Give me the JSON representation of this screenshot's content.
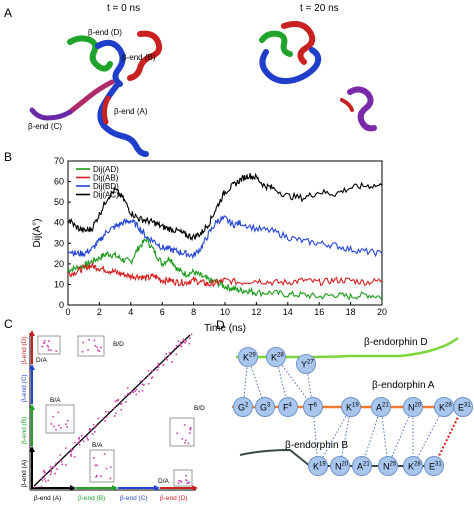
{
  "panels": {
    "a": {
      "letter": "A",
      "time_left": "t = 0 ns",
      "time_right": "t = 20 ns",
      "end_labels": [
        "β-end (D)",
        "β-end (B)",
        "β-end (C)",
        "β-end (A)"
      ]
    },
    "b": {
      "letter": "B"
    },
    "c": {
      "letter": "C",
      "axis_labels": [
        "β-end (A)",
        "β-end (B)",
        "β-end (C)",
        "β-end (D)"
      ],
      "block_labels": [
        "D/A",
        "B/D",
        "B/A",
        "B/A",
        "B/D",
        "D/A"
      ]
    },
    "d": {
      "letter": "D",
      "chain_d": {
        "title": "β-endorphin D",
        "residues": [
          {
            "aa": "K",
            "num": "29"
          },
          {
            "aa": "K",
            "num": "28"
          },
          {
            "aa": "Y",
            "num": "27"
          }
        ]
      },
      "chain_a": {
        "title": "β-endorphin A",
        "residues": [
          {
            "aa": "G",
            "num": "2"
          },
          {
            "aa": "G",
            "num": "3"
          },
          {
            "aa": "F",
            "num": "4"
          },
          {
            "aa": "T",
            "num": "6"
          },
          {
            "aa": "K",
            "num": "19"
          },
          {
            "aa": "A",
            "num": "21"
          },
          {
            "aa": "N",
            "num": "20"
          },
          {
            "aa": "K",
            "num": "28"
          },
          {
            "aa": "E",
            "num": "31"
          }
        ]
      },
      "chain_b": {
        "title": "β-endorphin B",
        "residues": [
          {
            "aa": "K",
            "num": "19"
          },
          {
            "aa": "N",
            "num": "20"
          },
          {
            "aa": "A",
            "num": "21"
          },
          {
            "aa": "N",
            "num": "25"
          },
          {
            "aa": "K",
            "num": "28"
          },
          {
            "aa": "E",
            "num": "31"
          }
        ]
      }
    }
  },
  "colors": {
    "AD": "#1a9a1a",
    "AB": "#d42020",
    "BD": "#2546d4",
    "AC": "#000000",
    "residue_fill": "#a9c6ee",
    "residue_stroke": "#6f93c9",
    "chain_d": "#7cd63a",
    "chain_a": "#f07a30",
    "chain_b": "#3a4a4a",
    "contact_blue": "#4a6fc0",
    "contact_red": "#d41818",
    "contact_dot": "#cc44aa"
  },
  "chart_data": {
    "type": "line",
    "xlabel": "Time (ns)",
    "ylabel": "Dij(A°)",
    "xlim": [
      0,
      20
    ],
    "ylim": [
      0,
      70
    ],
    "xticks": [
      0,
      2,
      4,
      6,
      8,
      10,
      12,
      14,
      16,
      18,
      20
    ],
    "yticks": [
      0,
      10,
      20,
      30,
      40,
      50,
      60,
      70
    ],
    "grid": false,
    "legend_position": "top-left",
    "series": [
      {
        "name": "Dij(AD)",
        "color": "#1a9a1a",
        "x": [
          0,
          0.5,
          1,
          1.5,
          2,
          2.5,
          3,
          3.5,
          4,
          4.5,
          5,
          5.5,
          6,
          6.5,
          7,
          7.5,
          8,
          8.5,
          9,
          9.5,
          10,
          10.5,
          11,
          11.5,
          12,
          13,
          14,
          15,
          16,
          17,
          18,
          19,
          20
        ],
        "y": [
          17,
          18,
          19,
          21,
          23,
          25,
          24,
          22,
          21,
          28,
          32,
          26,
          20,
          23,
          17,
          15,
          16,
          14,
          12,
          11,
          9,
          8,
          7,
          7,
          6,
          6,
          5,
          5,
          4,
          5,
          4,
          5,
          4
        ]
      },
      {
        "name": "Dij(AB)",
        "color": "#d42020",
        "x": [
          0,
          0.5,
          1,
          1.5,
          2,
          2.5,
          3,
          3.5,
          4,
          4.5,
          5,
          5.5,
          6,
          6.5,
          7,
          7.5,
          8,
          8.5,
          9,
          9.5,
          10,
          11,
          12,
          13,
          14,
          15,
          16,
          17,
          18,
          19,
          20
        ],
        "y": [
          15,
          16,
          18,
          19,
          18,
          17,
          16,
          15,
          14,
          14,
          13,
          14,
          12,
          12,
          11,
          11,
          12,
          11,
          10,
          11,
          12,
          11,
          12,
          11,
          11,
          12,
          11,
          12,
          12,
          11,
          12
        ]
      },
      {
        "name": "Dij(BD)",
        "color": "#2546d4",
        "x": [
          0,
          0.5,
          1,
          1.5,
          2,
          2.5,
          3,
          3.5,
          4,
          4.5,
          5,
          5.5,
          6,
          6.5,
          7,
          7.5,
          8,
          8.5,
          9,
          9.5,
          10,
          10.5,
          11,
          12,
          13,
          14,
          15,
          16,
          17,
          18,
          19,
          20
        ],
        "y": [
          27,
          25,
          25,
          27,
          31,
          36,
          38,
          40,
          41,
          38,
          33,
          31,
          28,
          27,
          26,
          25,
          24,
          28,
          35,
          41,
          42,
          39,
          40,
          37,
          36,
          33,
          31,
          30,
          29,
          27,
          26,
          25
        ]
      },
      {
        "name": "Dij(AC)",
        "color": "#000000",
        "x": [
          0,
          0.5,
          1,
          1.5,
          2,
          2.5,
          3,
          3.5,
          4,
          4.5,
          5,
          5.5,
          6,
          6.5,
          7,
          7.5,
          8,
          8.5,
          9,
          9.5,
          10,
          10.5,
          11,
          11.5,
          12,
          12.5,
          13,
          14,
          15,
          16,
          17,
          18,
          19,
          20
        ],
        "y": [
          42,
          38,
          36,
          37,
          44,
          52,
          56,
          52,
          45,
          42,
          41,
          40,
          38,
          37,
          36,
          34,
          33,
          35,
          40,
          48,
          55,
          58,
          61,
          63,
          62,
          58,
          57,
          53,
          52,
          55,
          54,
          57,
          58,
          58
        ]
      }
    ]
  }
}
